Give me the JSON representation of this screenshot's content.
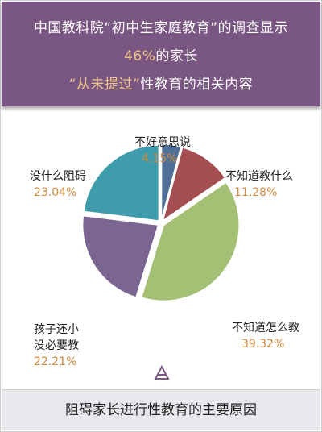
{
  "header": {
    "line1": "中国教科院“初中生家庭教育”的调查显示",
    "line2_value": "46%",
    "line2_text": "的家长",
    "line3_quote": "“从未提过”",
    "line3_text": "性教育的相关内容"
  },
  "footer": {
    "caption": "阻碍家长进行性教育的主要原因"
  },
  "colors": {
    "header_bg": "#7a5682",
    "accent": "#f0c58a",
    "value_text": "#d08a3c"
  },
  "chart_data": {
    "type": "pie",
    "title": "",
    "slices": [
      {
        "label": "不好意思说",
        "value": 4.15,
        "display": "4.15%",
        "color": "#4f6e98"
      },
      {
        "label": "不知道教什么",
        "value": 11.28,
        "display": "11.28%",
        "color": "#a54e52"
      },
      {
        "label": "不知道怎么教",
        "value": 39.32,
        "display": "39.32%",
        "color": "#a3c075"
      },
      {
        "label_lines": [
          "孩子还小",
          "没必要教"
        ],
        "label": "孩子还小没必要教",
        "value": 22.21,
        "display": "22.21%",
        "color": "#7a6690"
      },
      {
        "label": "没什么阻碍",
        "value": 23.04,
        "display": "23.04%",
        "color": "#3e9cac"
      }
    ]
  }
}
